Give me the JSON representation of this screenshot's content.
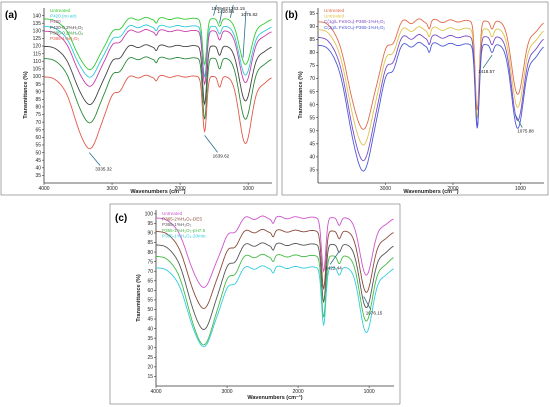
{
  "chart_data": [
    {
      "type": "line",
      "panel": "(a)",
      "xlabel": "Wavenumbers (cm⁻¹)",
      "ylabel": "Transmittance (%)",
      "xlim": [
        4000,
        650
      ],
      "ylim": [
        30,
        145
      ],
      "x_ticks": [
        4000,
        3000,
        2000,
        1000
      ],
      "y_ticks": [
        35,
        40,
        45,
        50,
        55,
        60,
        65,
        70,
        75,
        80,
        85,
        90,
        95,
        100,
        105,
        110,
        115,
        120,
        125,
        130,
        135,
        140
      ],
      "legend_position": "top-left",
      "series": [
        {
          "name": "Untreated",
          "color": "#33cc33",
          "baseline": 138,
          "broad_dip": 33,
          "dips": [
            {
              "x": 1640,
              "d": 30
            },
            {
              "x": 1420,
              "d": 5
            },
            {
              "x": 1040,
              "d": 30
            }
          ]
        },
        {
          "name": "P420 (no air)",
          "color": "#2fc9d8",
          "baseline": 133,
          "broad_dip": 33,
          "dips": [
            {
              "x": 1640,
              "d": 33
            },
            {
              "x": 1420,
              "d": 5
            },
            {
              "x": 1040,
              "d": 32
            }
          ]
        },
        {
          "name": "P420",
          "color": "#c83ca8",
          "baseline": 130,
          "broad_dip": 36,
          "dips": [
            {
              "x": 1640,
              "d": 35
            },
            {
              "x": 1420,
              "d": 6
            },
            {
              "x": 1040,
              "d": 34
            }
          ]
        },
        {
          "name": "P420-0.2%H₂O₂",
          "color": "#444444",
          "baseline": 120,
          "broad_dip": 38,
          "dips": [
            {
              "x": 1640,
              "d": 38
            },
            {
              "x": 1420,
              "d": 6
            },
            {
              "x": 1040,
              "d": 36
            }
          ]
        },
        {
          "name": "P365-0.2%H₂O₂",
          "color": "#2a8a3a",
          "baseline": 112,
          "broad_dip": 42,
          "dips": [
            {
              "x": 1640,
              "d": 40
            },
            {
              "x": 1420,
              "d": 7
            },
            {
              "x": 1040,
              "d": 40
            }
          ]
        },
        {
          "name": "P365-1%H₂O₂",
          "color": "#e05a4a",
          "baseline": 100,
          "broad_dip": 47,
          "dips": [
            {
              "x": 1640,
              "d": 36
            },
            {
              "x": 1420,
              "d": 7
            },
            {
              "x": 1040,
              "d": 44
            }
          ]
        }
      ],
      "annotations": [
        {
          "text": "3335.32",
          "x": 3335
        },
        {
          "text": "1639.62",
          "x": 1640
        },
        {
          "text": "1509.82",
          "x": 1510
        },
        {
          "text": "1420.96",
          "x": 1421
        },
        {
          "text": "1263.15",
          "x": 1263
        },
        {
          "text": "1075.82",
          "x": 1076
        }
      ]
    },
    {
      "type": "line",
      "panel": "(b)",
      "xlabel": "Wavenumbers (cm⁻¹)",
      "ylabel": "Transmittance (%)",
      "xlim": [
        4000,
        650
      ],
      "ylim": [
        30,
        97
      ],
      "x_ticks": [
        3000,
        2000,
        1000
      ],
      "y_ticks": [
        35,
        40,
        45,
        50,
        55,
        60,
        65,
        70,
        75,
        80,
        85,
        90,
        95
      ],
      "legend_position": "top-left",
      "series": [
        {
          "name": "Untreated",
          "color": "#e06a4a",
          "baseline": 92,
          "broad_dip": 41,
          "dips": [
            {
              "x": 1640,
              "d": 34
            },
            {
              "x": 1420,
              "d": 3
            },
            {
              "x": 1040,
              "d": 28
            }
          ]
        },
        {
          "name": "Untreated",
          "color": "#e0c24a",
          "baseline": 89,
          "broad_dip": 44,
          "dips": [
            {
              "x": 1640,
              "d": 34
            },
            {
              "x": 1420,
              "d": 3
            },
            {
              "x": 1040,
              "d": 30
            }
          ]
        },
        {
          "name": "C(1g/L FeSO₄)-P365-1%H₂O₂",
          "color": "#7a4ac8",
          "baseline": 86,
          "broad_dip": 47,
          "dips": [
            {
              "x": 1640,
              "d": 34
            },
            {
              "x": 1420,
              "d": 3
            },
            {
              "x": 1040,
              "d": 32
            }
          ]
        },
        {
          "name": "C(2g/L FeSO₄)-P365-1%H₂O₂",
          "color": "#4a5ad8",
          "baseline": 83,
          "broad_dip": 48,
          "dips": [
            {
              "x": 1640,
              "d": 32
            },
            {
              "x": 1420,
              "d": 3
            },
            {
              "x": 1040,
              "d": 32
            }
          ]
        }
      ],
      "annotations": [
        {
          "text": "1418.57",
          "x": 1419
        },
        {
          "text": "1075.88",
          "x": 1076
        }
      ]
    },
    {
      "type": "line",
      "panel": "(c)",
      "xlabel": "Wavenumbers (cm⁻¹)",
      "ylabel": "Transmittance (%)",
      "xlim": [
        4000,
        650
      ],
      "ylim": [
        10,
        102
      ],
      "x_ticks": [
        4000,
        3000,
        2000,
        1000
      ],
      "y_ticks": [
        15,
        20,
        25,
        30,
        35,
        40,
        45,
        50,
        55,
        60,
        65,
        70,
        75,
        80,
        85,
        90,
        95,
        100
      ],
      "legend_position": "top-left",
      "series": [
        {
          "name": "Untreated",
          "color": "#cc55cc",
          "baseline": 98,
          "broad_dip": 36,
          "dips": [
            {
              "x": 1640,
              "d": 28
            },
            {
              "x": 1420,
              "d": 4
            },
            {
              "x": 1040,
              "d": 30
            }
          ]
        },
        {
          "name": "P365-2%H₂O₂-DES",
          "color": "#8a4a3a",
          "baseline": 91,
          "broad_dip": 40,
          "dips": [
            {
              "x": 1640,
              "d": 30
            },
            {
              "x": 1420,
              "d": 4
            },
            {
              "x": 1040,
              "d": 32
            }
          ]
        },
        {
          "name": "P365-1%H₂O₂",
          "color": "#555555",
          "baseline": 84,
          "broad_dip": 44,
          "dips": [
            {
              "x": 1640,
              "d": 30
            },
            {
              "x": 1420,
              "d": 4
            },
            {
              "x": 1040,
              "d": 33
            }
          ]
        },
        {
          "name": "P365-1%H₂O₂-pH7.5",
          "color": "#44bb44",
          "baseline": 78,
          "broad_dip": 46,
          "dips": [
            {
              "x": 1640,
              "d": 32
            },
            {
              "x": 1420,
              "d": 4
            },
            {
              "x": 1040,
              "d": 34
            }
          ]
        },
        {
          "name": "P365-1%H₂O₂-20min",
          "color": "#33ccdd",
          "baseline": 72,
          "broad_dip": 41,
          "dips": [
            {
              "x": 1640,
              "d": 30
            },
            {
              "x": 1420,
              "d": 4
            },
            {
              "x": 1040,
              "d": 34
            }
          ]
        }
      ],
      "annotations": [
        {
          "text": "1422.44",
          "x": 1422
        },
        {
          "text": "1076.15",
          "x": 1076
        }
      ]
    }
  ]
}
